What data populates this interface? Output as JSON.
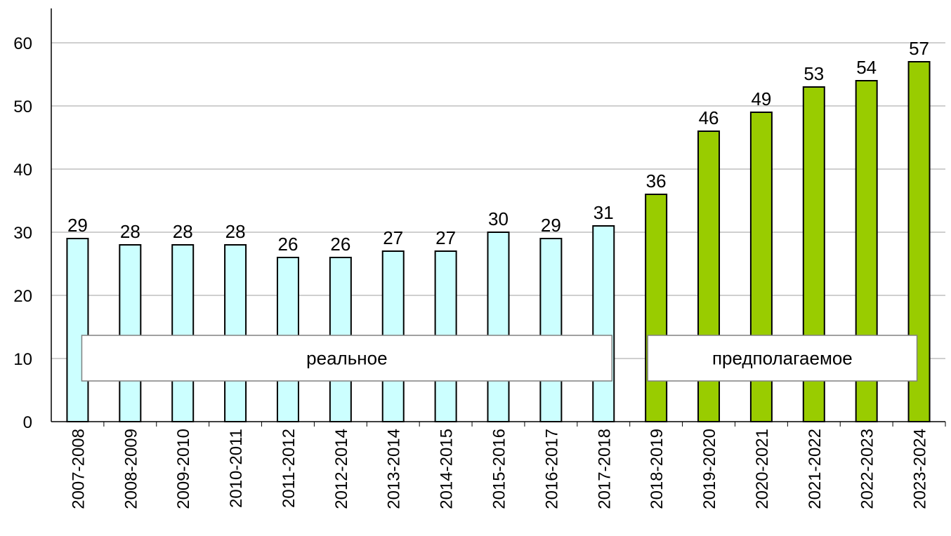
{
  "chart_data": {
    "type": "bar",
    "categories": [
      "2007-2008",
      "2008-2009",
      "2009-2010",
      "2010-2011",
      "2011-2012",
      "2012-2014",
      "2013-2014",
      "2014-2015",
      "2015-2016",
      "2016-2017",
      "2017-2018",
      "2018-2019",
      "2019-2020",
      "2020-2021",
      "2021-2022",
      "2022-2023",
      "2023-2024"
    ],
    "values": [
      29,
      28,
      28,
      28,
      26,
      26,
      27,
      27,
      30,
      29,
      31,
      36,
      46,
      49,
      53,
      54,
      57
    ],
    "groups": [
      {
        "label": "реальное",
        "start": 0,
        "end": 10,
        "color": "#ccffff"
      },
      {
        "label": "предполагаемое",
        "start": 11,
        "end": 16,
        "color": "#99cc00"
      }
    ],
    "yticks": [
      0,
      10,
      20,
      30,
      40,
      50,
      60
    ],
    "ylim": [
      0,
      65
    ],
    "grid": true,
    "data_labels": true
  }
}
